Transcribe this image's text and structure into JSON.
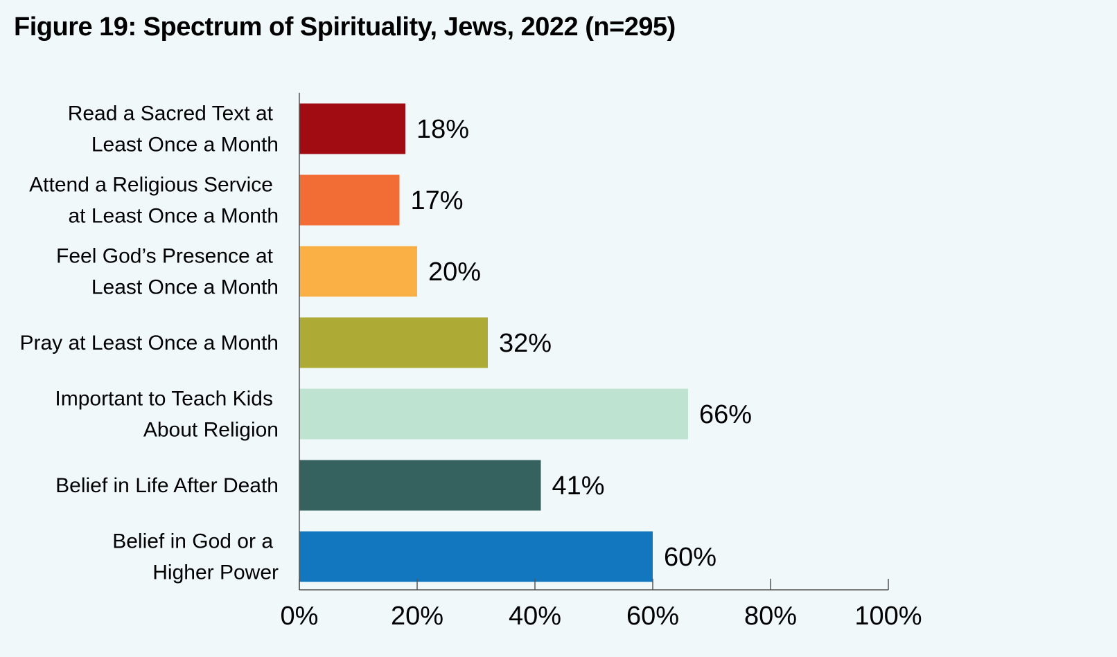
{
  "chart_data": {
    "type": "bar",
    "orientation": "horizontal",
    "title": "Figure 19: Spectrum of Spirituality, Jews, 2022 (n=295)",
    "categories": [
      [
        "Read a Sacred Text at",
        "Least Once a Month"
      ],
      [
        "Attend a Religious Service",
        "at Least Once a Month"
      ],
      [
        "Feel God’s Presence at",
        "Least Once a Month"
      ],
      [
        "Pray at Least Once a Month"
      ],
      [
        "Important to Teach Kids",
        "About Religion"
      ],
      [
        "Belief in Life After Death"
      ],
      [
        "Belief in God or a",
        "Higher Power"
      ]
    ],
    "values": [
      18,
      17,
      20,
      32,
      66,
      41,
      60
    ],
    "value_labels": [
      "18%",
      "17%",
      "20%",
      "32%",
      "66%",
      "41%",
      "60%"
    ],
    "colors": [
      "#a10c13",
      "#f26d35",
      "#fbb046",
      "#adab35",
      "#bfe3d1",
      "#35615f",
      "#1277be"
    ],
    "xlim": [
      0,
      100
    ],
    "xticks": [
      0,
      20,
      40,
      60,
      80,
      100
    ],
    "xtick_labels": [
      "0%",
      "20%",
      "40%",
      "60%",
      "80%",
      "100%"
    ],
    "grid": false,
    "legend": "none"
  }
}
